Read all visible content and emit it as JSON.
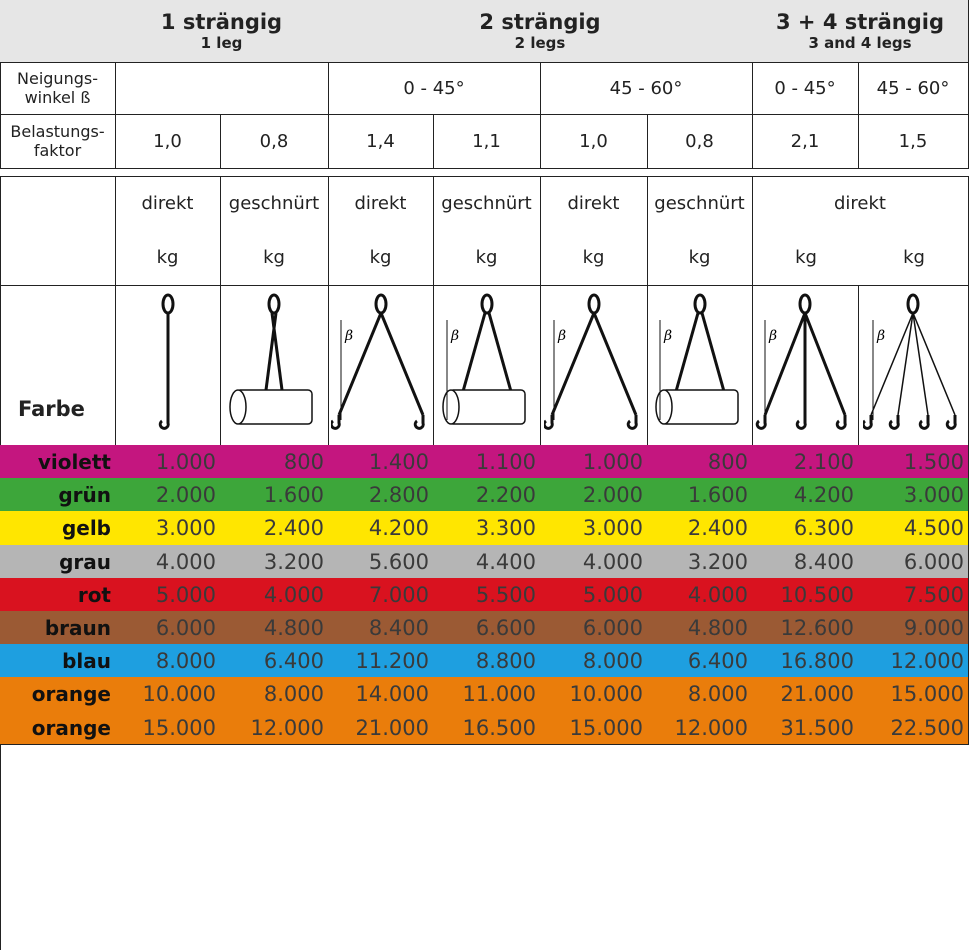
{
  "header": {
    "groups": [
      {
        "title": "1 strängig",
        "subtitle": "1 leg"
      },
      {
        "title": "2 strängig",
        "subtitle": "2 legs"
      },
      {
        "title": "3 + 4 strängig",
        "subtitle": "3 and 4 legs"
      }
    ]
  },
  "angle_row": {
    "label": [
      "Neigungs-",
      "winkel ß"
    ],
    "values": [
      "0 - 45°",
      "45 - 60°",
      "0 - 45°",
      "45 - 60°"
    ]
  },
  "factor_row": {
    "label": [
      "Belastungs-",
      "faktor"
    ],
    "values": [
      "1,0",
      "0,8",
      "1,4",
      "1,1",
      "1,0",
      "0,8",
      "2,1",
      "1,5"
    ]
  },
  "method_row": {
    "methods": [
      "direkt",
      "geschnürt",
      "direkt",
      "geschnürt",
      "direkt",
      "geschnürt",
      "direkt"
    ],
    "units": [
      "kg",
      "kg",
      "kg",
      "kg",
      "kg",
      "kg",
      "kg",
      "kg"
    ]
  },
  "image_row": {
    "label": "Farbe",
    "angle_symbol": "β"
  },
  "rows": [
    {
      "name": "violett",
      "color": "#c4167f",
      "values": [
        "1.000",
        "800",
        "1.400",
        "1.100",
        "1.000",
        "800",
        "2.100",
        "1.500"
      ]
    },
    {
      "name": "grün",
      "color": "#3da63a",
      "values": [
        "2.000",
        "1.600",
        "2.800",
        "2.200",
        "2.000",
        "1.600",
        "4.200",
        "3.000"
      ]
    },
    {
      "name": "gelb",
      "color": "#ffe600",
      "values": [
        "3.000",
        "2.400",
        "4.200",
        "3.300",
        "3.000",
        "2.400",
        "6.300",
        "4.500"
      ]
    },
    {
      "name": "grau",
      "color": "#b5b5b5",
      "values": [
        "4.000",
        "3.200",
        "5.600",
        "4.400",
        "4.000",
        "3.200",
        "8.400",
        "6.000"
      ]
    },
    {
      "name": "rot",
      "color": "#d9121f",
      "values": [
        "5.000",
        "4.000",
        "7.000",
        "5.500",
        "5.000",
        "4.000",
        "10.500",
        "7.500"
      ]
    },
    {
      "name": "braun",
      "color": "#9b5a34",
      "values": [
        "6.000",
        "4.800",
        "8.400",
        "6.600",
        "6.000",
        "4.800",
        "12.600",
        "9.000"
      ]
    },
    {
      "name": "blau",
      "color": "#1e9fe0",
      "values": [
        "8.000",
        "6.400",
        "11.200",
        "8.800",
        "8.000",
        "6.400",
        "16.800",
        "12.000"
      ]
    },
    {
      "name": "orange",
      "color": "#ea7d0b",
      "values": [
        "10.000",
        "8.000",
        "14.000",
        "11.000",
        "10.000",
        "8.000",
        "21.000",
        "15.000"
      ]
    },
    {
      "name": "orange",
      "color": "#ea7d0b",
      "values": [
        "15.000",
        "12.000",
        "21.000",
        "16.500",
        "15.000",
        "12.000",
        "31.500",
        "22.500"
      ]
    }
  ]
}
